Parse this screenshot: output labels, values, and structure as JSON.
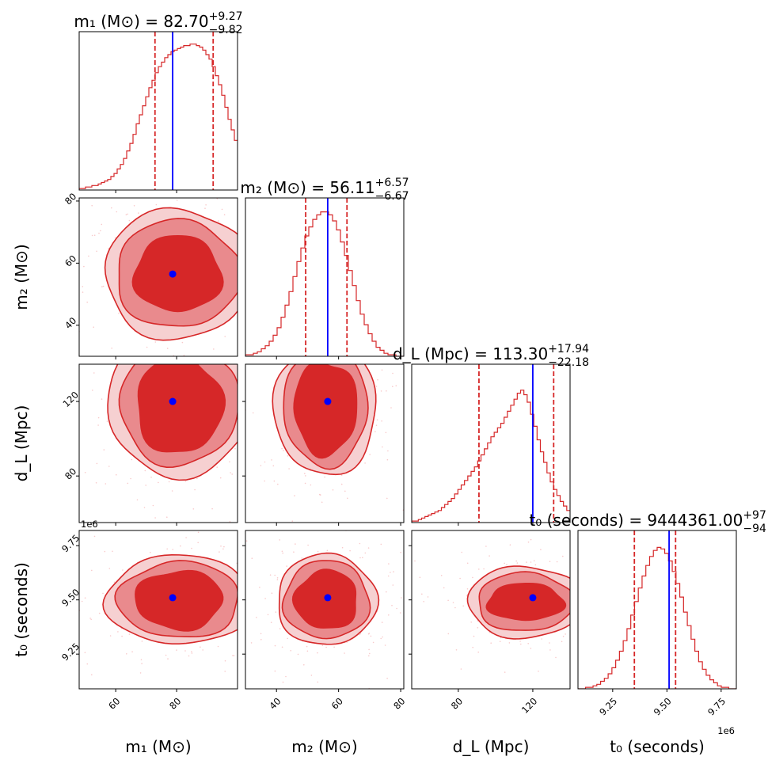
{
  "chart_data": {
    "type": "corner",
    "parameters": [
      {
        "name": "m1",
        "axis_label": "m₁ (M⊙)",
        "title_prefix": "m₁ (M⊙) = ",
        "median": "82.70",
        "err_plus": "+9.27",
        "err_minus": "−9.82",
        "range": [
          48,
          100
        ],
        "ticks": [
          60,
          80
        ],
        "truth": 78.7,
        "quantiles": [
          72.9,
          92.0
        ]
      },
      {
        "name": "m2",
        "axis_label": "m₂ (M⊙)",
        "title_prefix": "m₂ (M⊙) = ",
        "median": "56.11",
        "err_plus": "+6.57",
        "err_minus": "−6.67",
        "range": [
          30,
          81
        ],
        "ticks": [
          40,
          60,
          80
        ],
        "truth": 56.5,
        "quantiles": [
          49.4,
          62.7
        ]
      },
      {
        "name": "dL",
        "axis_label": "d_L (Mpc)",
        "title_prefix": "d_L (Mpc) = ",
        "median": "113.30",
        "err_plus": "+17.94",
        "err_minus": "−22.18",
        "range": [
          55,
          140
        ],
        "ticks": [
          80,
          120
        ],
        "truth": 120,
        "quantiles": [
          91.1,
          131.2
        ]
      },
      {
        "name": "t0",
        "axis_label": "t₀ (seconds)",
        "title_prefix": "t₀ (seconds) = ",
        "median": "9444361.00",
        "err_plus": "+97",
        "err_minus": "−94",
        "range": [
          9.09,
          9.82
        ],
        "ticks": [
          9.25,
          9.5,
          9.75
        ],
        "offset_text": "1e6",
        "truth": 9.51,
        "quantiles": [
          9.35,
          9.54
        ]
      }
    ],
    "histograms": [
      [
        0.01,
        0.01,
        0.02,
        0.02,
        0.03,
        0.03,
        0.04,
        0.05,
        0.06,
        0.07,
        0.09,
        0.11,
        0.14,
        0.17,
        0.21,
        0.26,
        0.31,
        0.37,
        0.44,
        0.5,
        0.56,
        0.62,
        0.68,
        0.73,
        0.78,
        0.82,
        0.85,
        0.88,
        0.9,
        0.92,
        0.93,
        0.94,
        0.95,
        0.96,
        0.96,
        0.97,
        0.97,
        0.96,
        0.95,
        0.93,
        0.9,
        0.87,
        0.82,
        0.76,
        0.7,
        0.63,
        0.55,
        0.47,
        0.4,
        0.33
      ],
      [
        0.01,
        0.01,
        0.02,
        0.03,
        0.05,
        0.07,
        0.1,
        0.14,
        0.19,
        0.26,
        0.34,
        0.43,
        0.53,
        0.63,
        0.72,
        0.8,
        0.86,
        0.91,
        0.94,
        0.96,
        0.96,
        0.94,
        0.9,
        0.84,
        0.76,
        0.67,
        0.57,
        0.47,
        0.37,
        0.28,
        0.21,
        0.15,
        0.1,
        0.06,
        0.04,
        0.02,
        0.01,
        0.01,
        0.0,
        0.0
      ],
      [
        0.01,
        0.01,
        0.02,
        0.03,
        0.04,
        0.05,
        0.06,
        0.07,
        0.08,
        0.1,
        0.12,
        0.14,
        0.16,
        0.19,
        0.22,
        0.25,
        0.28,
        0.31,
        0.34,
        0.37,
        0.41,
        0.45,
        0.49,
        0.53,
        0.57,
        0.6,
        0.63,
        0.66,
        0.7,
        0.74,
        0.78,
        0.82,
        0.86,
        0.88,
        0.85,
        0.8,
        0.72,
        0.64,
        0.55,
        0.47,
        0.4,
        0.33,
        0.27,
        0.22,
        0.18,
        0.14,
        0.11,
        0.08
      ],
      [
        0.0,
        0.0,
        0.01,
        0.01,
        0.02,
        0.03,
        0.05,
        0.07,
        0.1,
        0.14,
        0.19,
        0.25,
        0.32,
        0.4,
        0.49,
        0.58,
        0.67,
        0.75,
        0.82,
        0.88,
        0.92,
        0.94,
        0.93,
        0.9,
        0.85,
        0.78,
        0.7,
        0.61,
        0.51,
        0.42,
        0.33,
        0.25,
        0.18,
        0.13,
        0.09,
        0.06,
        0.04,
        0.02,
        0.01,
        0.01,
        0.0,
        0.0
      ]
    ],
    "contours": [
      {
        "row": 1,
        "col": 0,
        "center": [
          80.4,
          56.5
        ],
        "radii": [
          [
            14.3,
            12.2
          ],
          [
            20.5,
            17.3
          ],
          [
            24.0,
            21.0
          ]
        ]
      },
      {
        "row": 2,
        "col": 0,
        "center": [
          80.8,
          118.0
        ],
        "radii": [
          [
            14.1,
            26.0
          ],
          [
            19.6,
            32.0
          ],
          [
            23.5,
            38.0
          ]
        ]
      },
      {
        "row": 2,
        "col": 1,
        "center": [
          55.8,
          116.5
        ],
        "radii": [
          [
            10.1,
            25.0
          ],
          [
            13.6,
            31.0
          ],
          [
            16.5,
            36.0
          ]
        ]
      },
      {
        "row": 3,
        "col": 0,
        "center": [
          80.8,
          9.5
        ],
        "radii": [
          [
            14.3,
            0.135
          ],
          [
            20.0,
            0.175
          ],
          [
            24.0,
            0.205
          ]
        ]
      },
      {
        "row": 3,
        "col": 1,
        "center": [
          56.1,
          9.5
        ],
        "radii": [
          [
            10.1,
            0.135
          ],
          [
            13.8,
            0.18
          ],
          [
            16.0,
            0.21
          ]
        ]
      },
      {
        "row": 3,
        "col": 2,
        "center": [
          116.0,
          9.49
        ],
        "radii": [
          [
            20.5,
            0.085
          ],
          [
            26.0,
            0.135
          ],
          [
            31.0,
            0.165
          ]
        ]
      }
    ],
    "colors": {
      "hist": "#d62728",
      "truth": "#0000ff",
      "fill_inner": "#d62728",
      "fill_mid": "#e98a8d",
      "fill_outer": "#f6d0d1",
      "scatter": "#f3a6a8"
    }
  }
}
